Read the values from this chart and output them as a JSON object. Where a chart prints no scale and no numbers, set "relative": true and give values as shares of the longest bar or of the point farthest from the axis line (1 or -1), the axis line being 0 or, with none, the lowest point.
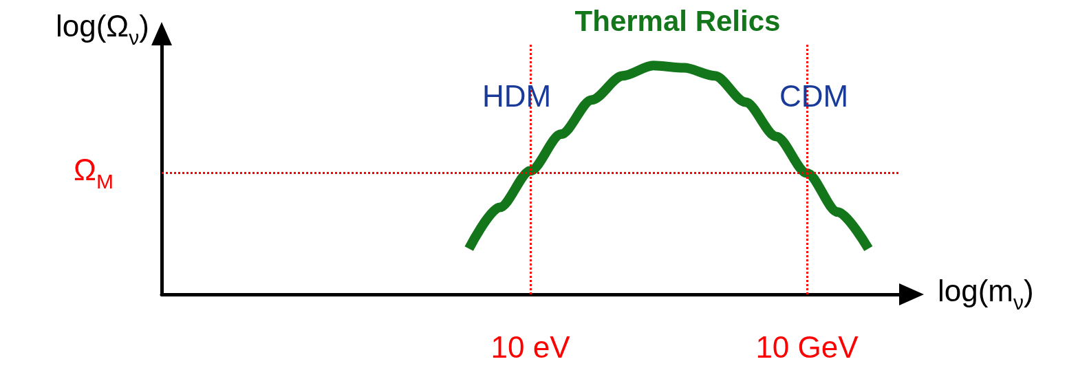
{
  "chart_data": {
    "type": "line",
    "title": "Thermal Relics",
    "xlabel": "log(m$_{ν}$)",
    "ylabel": "log(Ω$_{ν}$)",
    "relative": true,
    "categories": [
      null,
      null,
      null,
      null,
      null,
      null,
      null,
      null,
      null,
      null,
      null,
      null,
      "10 eV",
      null,
      null,
      null,
      null,
      null,
      null,
      null,
      null,
      "10 GeV",
      null,
      null,
      null
    ],
    "series": [
      {
        "color": "#13761a",
        "values": [
          null,
          null,
          null,
          null,
          null,
          null,
          null,
          null,
          null,
          null,
          0.2,
          0.38,
          0.54,
          0.7,
          0.85,
          0.955,
          1,
          0.99,
          0.955,
          0.84,
          0.69,
          0.53,
          0.36,
          0.2,
          null
        ]
      }
    ],
    "ref_lines": [
      {
        "axis": "y",
        "value": 0.53,
        "label": "Ω$_{M}$",
        "color": "#ff0000",
        "line_style": "dotted"
      },
      {
        "axis": "x",
        "value": "10 eV",
        "color": "#ff0000",
        "line_style": "dotted"
      },
      {
        "axis": "x",
        "value": "10 GeV",
        "color": "#ff0000",
        "line_style": "dotted"
      }
    ],
    "annotations": [
      "HDM",
      "CDM"
    ],
    "grid": false,
    "marker": "none",
    "line_style": "solid"
  }
}
